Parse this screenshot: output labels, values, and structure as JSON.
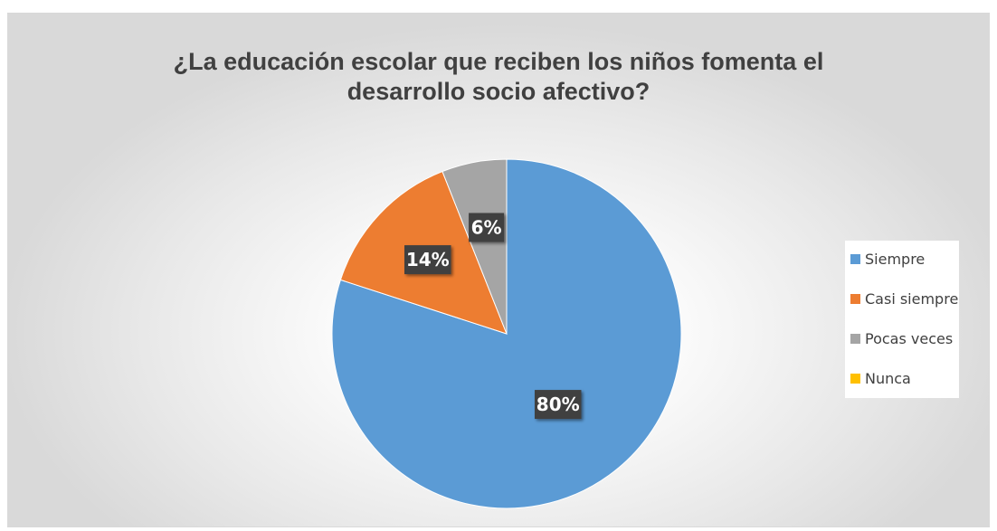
{
  "chart_data": {
    "type": "pie",
    "title": "¿La educación escolar que reciben los niños fomenta el desarrollo socio afectivo?",
    "title_lines": [
      "¿La educación escolar que reciben los niños fomenta el",
      "desarrollo socio afectivo?"
    ],
    "categories": [
      "Siempre",
      "Casi siempre",
      "Pocas veces",
      "Nunca"
    ],
    "values": [
      80,
      14,
      6,
      0
    ],
    "labels": [
      "80%",
      "14%",
      "6%",
      ""
    ],
    "colors": [
      "#5b9bd5",
      "#ed7d31",
      "#a5a5a5",
      "#ffc000"
    ],
    "legend_position": "right"
  }
}
